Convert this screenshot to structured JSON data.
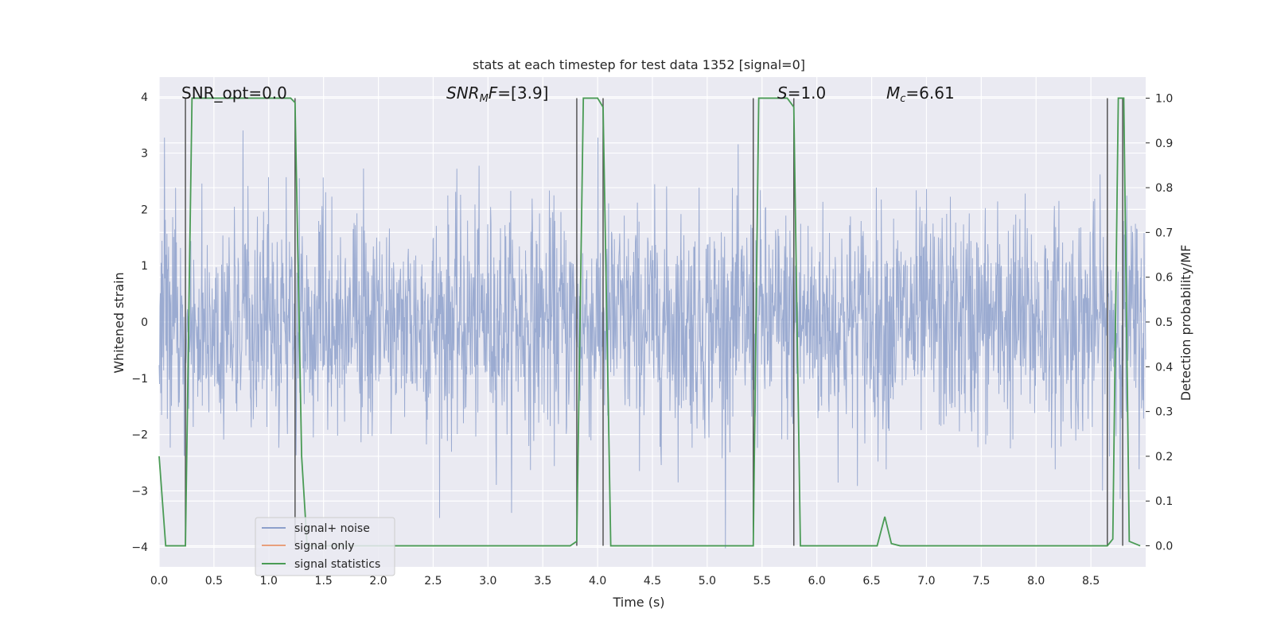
{
  "chart_data": {
    "type": "line",
    "title": "stats at each timestep for test data 1352 [signal=0]",
    "xlabel": "Time (s)",
    "ylabel_left": "Whitened strain",
    "ylabel_right": "Detection probability/MF",
    "xlim": [
      0.0,
      9.0
    ],
    "ylim_left": [
      -4.35,
      4.35
    ],
    "ylim_right": [
      -0.047,
      1.047
    ],
    "x_ticks": [
      "0.0",
      "0.5",
      "1.0",
      "1.5",
      "2.0",
      "2.5",
      "3.0",
      "3.5",
      "4.0",
      "4.5",
      "5.0",
      "5.5",
      "6.0",
      "6.5",
      "7.0",
      "7.5",
      "8.0",
      "8.5"
    ],
    "y_ticks_left": [
      "4",
      "3",
      "2",
      "1",
      "0",
      "−1",
      "−2",
      "−3",
      "−4"
    ],
    "y_ticks_right": [
      "1.0",
      "0.9",
      "0.8",
      "0.7",
      "0.6",
      "0.5",
      "0.4",
      "0.3",
      "0.2",
      "0.1",
      "0.0"
    ],
    "annotations": {
      "snr_opt": "SNR_opt=0.0",
      "snr_mf_base": "SNR",
      "snr_mf_sub": "M",
      "snr_mf_rest": "F=[3.9]",
      "s_stat": "=1.0",
      "s_sym": "S",
      "mc_sym": "M",
      "mc_sub": "c",
      "mc_rest": "=6.61"
    },
    "legend": {
      "placement": "lower-left",
      "entries": [
        "signal+ noise",
        "signal only",
        "signal statistics"
      ]
    },
    "series": [
      {
        "name": "signal+ noise",
        "axis": "left",
        "color": "#8da0cb",
        "description_values": "white-noise whitened strain, amplitude mostly within ±2.5, peaks to ±4",
        "noise_sigma": 1.0
      },
      {
        "name": "signal only",
        "axis": "left",
        "color": "#e8a07c",
        "x": [],
        "y": []
      },
      {
        "name": "signal statistics",
        "axis": "right",
        "color": "#4a9b55",
        "x": [
          0.0,
          0.06,
          0.24,
          0.3,
          1.2,
          1.24,
          1.3,
          1.35,
          3.75,
          3.81,
          3.87,
          4.0,
          4.05,
          4.12,
          5.42,
          5.47,
          5.73,
          5.79,
          5.85,
          6.55,
          6.62,
          6.68,
          6.76,
          8.65,
          8.7,
          8.75,
          8.8,
          8.85,
          8.95
        ],
        "y": [
          0.2,
          0.0,
          0.0,
          1.0,
          1.0,
          0.99,
          0.2,
          0.0,
          0.0,
          0.01,
          1.0,
          1.0,
          0.98,
          0.0,
          0.0,
          1.0,
          1.0,
          0.98,
          0.0,
          0.0,
          0.065,
          0.005,
          0.0,
          0.0,
          0.015,
          1.0,
          1.0,
          0.01,
          0.0
        ]
      }
    ],
    "vertical_markers": [
      {
        "x": 0.24,
        "y_min": 0.0,
        "y_max": 1.0
      },
      {
        "x": 1.24,
        "y_min": 0.0,
        "y_max": 1.0
      },
      {
        "x": 3.81,
        "y_min": 0.0,
        "y_max": 1.0
      },
      {
        "x": 4.05,
        "y_min": 0.0,
        "y_max": 1.0
      },
      {
        "x": 5.42,
        "y_min": 0.0,
        "y_max": 1.0
      },
      {
        "x": 5.79,
        "y_min": 0.0,
        "y_max": 1.0
      },
      {
        "x": 8.65,
        "y_min": 0.0,
        "y_max": 1.0
      },
      {
        "x": 8.79,
        "y_min": 0.0,
        "y_max": 1.0
      }
    ],
    "grid": true,
    "colors": {
      "background": "#eaeaf2",
      "grid": "#ffffff",
      "marker": "#555555"
    }
  }
}
